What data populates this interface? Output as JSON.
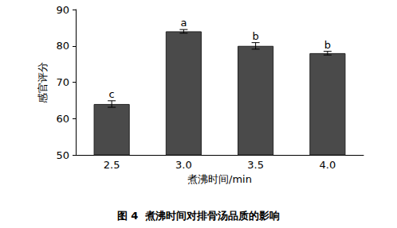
{
  "chart_data": {
    "type": "bar",
    "title": "图 4  煮沸时间对排骨汤品质的影响",
    "xlabel": "煮沸时间/min",
    "ylabel": "感官评分",
    "categories": [
      "2.5",
      "3.0",
      "3.5",
      "4.0"
    ],
    "values": [
      64,
      84,
      80,
      78
    ],
    "errors": [
      0.9,
      0.5,
      0.9,
      0.5
    ],
    "letters": [
      "c",
      "a",
      "b",
      "b"
    ],
    "color": "#4a4a4a",
    "ylim": [
      50,
      90
    ],
    "yticks": [
      50,
      60,
      70,
      80,
      90
    ],
    "grid": false
  }
}
